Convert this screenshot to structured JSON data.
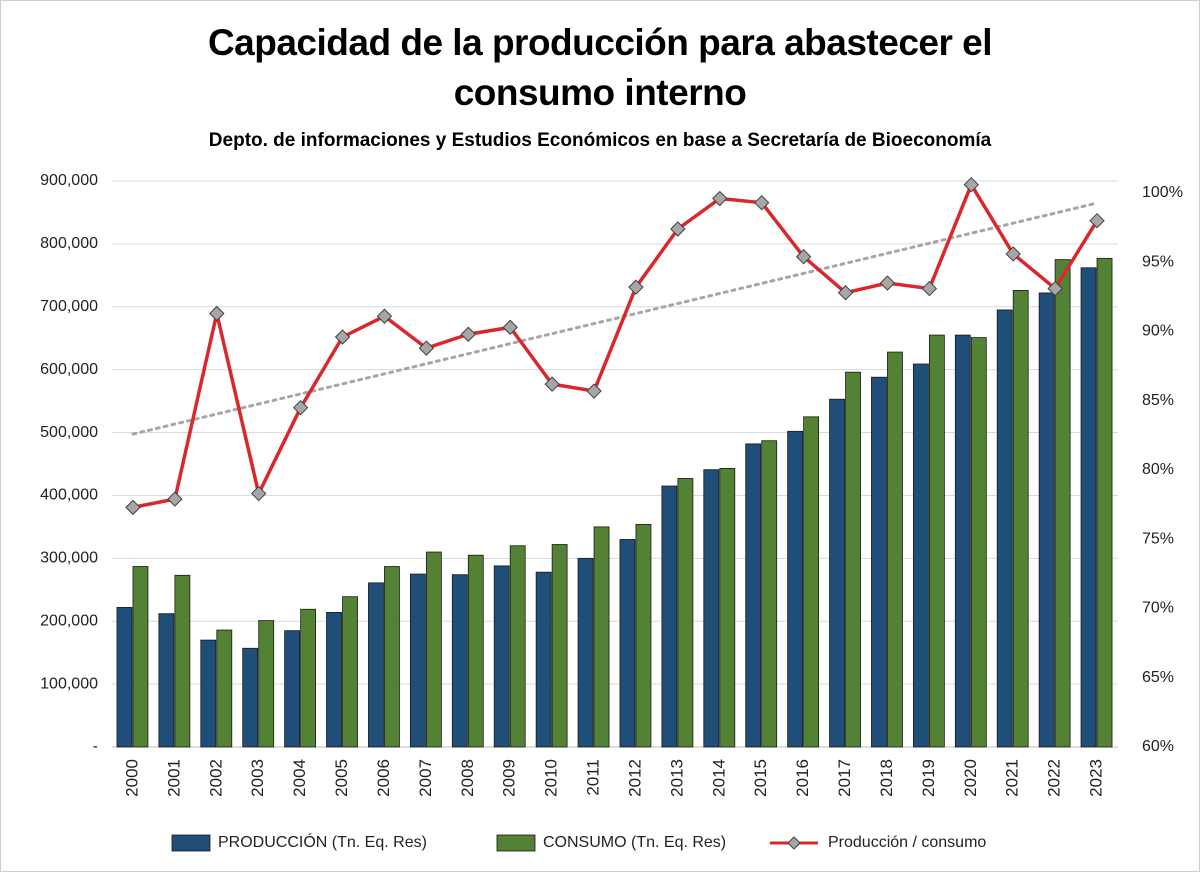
{
  "chart_data": {
    "type": "bar-line",
    "title": "Capacidad de la producción para abastecer el consumo interno",
    "subtitle": "Depto. de informaciones y Estudios Económicos en base a Secretaría de Bioeconomía",
    "categories": [
      "2000",
      "2001",
      "2002",
      "2003",
      "2004",
      "2005",
      "2006",
      "2007",
      "2008",
      "2009",
      "2010",
      "2011",
      "2012",
      "2013",
      "2014",
      "2015",
      "2016",
      "2017",
      "2018",
      "2019",
      "2020",
      "2021",
      "2022",
      "2023"
    ],
    "series": [
      {
        "name": "PRODUCCIÓN (Tn. Eq. Res)",
        "type": "bar",
        "color": "#1f4e79",
        "values": [
          222000,
          212000,
          170000,
          157000,
          185000,
          214000,
          261000,
          275000,
          274000,
          288000,
          278000,
          300000,
          330000,
          415000,
          441000,
          482000,
          502000,
          553000,
          588000,
          609000,
          655000,
          695000,
          722000,
          762000
        ]
      },
      {
        "name": "CONSUMO (Tn. Eq. Res)",
        "type": "bar",
        "color": "#548235",
        "values": [
          287000,
          273000,
          186000,
          201000,
          219000,
          239000,
          287000,
          310000,
          305000,
          320000,
          322000,
          350000,
          354000,
          427000,
          443000,
          487000,
          525000,
          596000,
          628000,
          655000,
          651000,
          726000,
          775000,
          777000
        ]
      },
      {
        "name": "Producción / consumo",
        "type": "line",
        "axis": "y2",
        "color": "#d9282c",
        "marker_color": "#a6a6a6",
        "trendline": true,
        "values": [
          77.3,
          77.9,
          91.3,
          78.3,
          84.5,
          89.6,
          91.1,
          88.8,
          89.8,
          90.3,
          86.2,
          85.7,
          93.2,
          97.4,
          99.6,
          99.3,
          95.4,
          92.8,
          93.5,
          93.1,
          100.6,
          95.6,
          93.1,
          98.0
        ]
      }
    ],
    "ylim": [
      0,
      900000
    ],
    "yticks": [
      {
        "value": 0,
        "label": "-"
      },
      {
        "value": 100000,
        "label": "100,000"
      },
      {
        "value": 200000,
        "label": "200,000"
      },
      {
        "value": 300000,
        "label": "300,000"
      },
      {
        "value": 400000,
        "label": "400,000"
      },
      {
        "value": 500000,
        "label": "500,000"
      },
      {
        "value": 600000,
        "label": "600,000"
      },
      {
        "value": 700000,
        "label": "700,000"
      },
      {
        "value": 800000,
        "label": "800,000"
      },
      {
        "value": 900000,
        "label": "900,000"
      }
    ],
    "y2lim": [
      60,
      100
    ],
    "y2ticks": [
      {
        "value": 60,
        "label": "60%"
      },
      {
        "value": 65,
        "label": "65%"
      },
      {
        "value": 70,
        "label": "70%"
      },
      {
        "value": 75,
        "label": "75%"
      },
      {
        "value": 80,
        "label": "80%"
      },
      {
        "value": 85,
        "label": "85%"
      },
      {
        "value": 90,
        "label": "90%"
      },
      {
        "value": 95,
        "label": "95%"
      },
      {
        "value": 100,
        "label": "100%"
      }
    ],
    "grid": true,
    "legend": "bottom"
  }
}
